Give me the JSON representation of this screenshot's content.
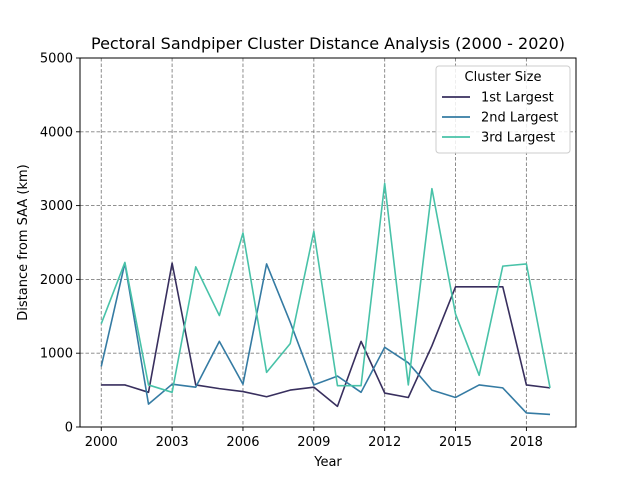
{
  "chart_data": {
    "type": "line",
    "title": "Pectoral Sandpiper Cluster Distance Analysis (2000 - 2020)",
    "xlabel": "Year",
    "ylabel": "Distance from SAA (km)",
    "xlim": [
      1999.1,
      2020.1
    ],
    "ylim": [
      0,
      5000
    ],
    "xticks": [
      2000,
      2003,
      2006,
      2009,
      2012,
      2015,
      2018
    ],
    "yticks": [
      0,
      1000,
      2000,
      3000,
      4000,
      5000
    ],
    "grid": true,
    "legend": {
      "title": "Cluster Size",
      "position": "top-right"
    },
    "x": [
      2000,
      2001,
      2002,
      2003,
      2004,
      2005,
      2006,
      2007,
      2008,
      2009,
      2010,
      2011,
      2012,
      2013,
      2014,
      2015,
      2016,
      2017,
      2018,
      2019
    ],
    "series": [
      {
        "name": "1st Largest",
        "color": "#382f5e",
        "values": [
          570,
          570,
          470,
          2220,
          570,
          520,
          480,
          410,
          500,
          540,
          280,
          1160,
          460,
          400,
          1100,
          1900,
          1900,
          1900,
          570,
          530
        ]
      },
      {
        "name": "2nd Largest",
        "color": "#357ba3",
        "values": [
          820,
          2220,
          310,
          580,
          540,
          1160,
          580,
          2210,
          1420,
          570,
          690,
          470,
          1080,
          870,
          500,
          400,
          570,
          530,
          190,
          170
        ]
      },
      {
        "name": "3rd Largest",
        "color": "#48c2a8",
        "values": [
          1400,
          2230,
          570,
          470,
          2170,
          1510,
          2630,
          740,
          1130,
          2650,
          560,
          560,
          3300,
          570,
          3230,
          1530,
          700,
          2180,
          2210,
          530
        ]
      }
    ]
  }
}
